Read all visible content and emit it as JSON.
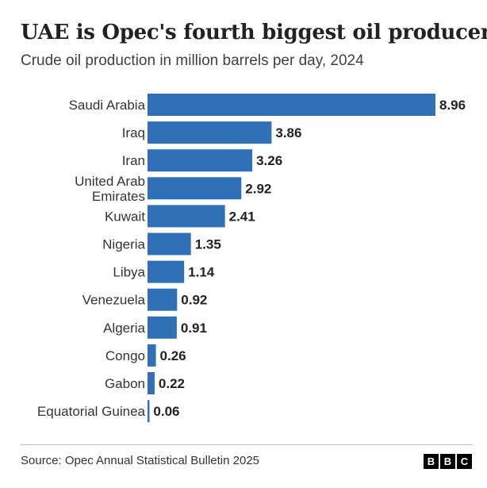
{
  "title": "UAE is Opec's fourth biggest oil producer",
  "subtitle": "Crude oil production in million barrels per day, 2024",
  "source": "Source: Opec Annual Statistical Bulletin 2025",
  "logo": {
    "letters": [
      "B",
      "B",
      "C"
    ]
  },
  "colors": {
    "bar": "#2f70b7"
  },
  "chart_data": {
    "type": "bar",
    "orientation": "horizontal",
    "title": "UAE is Opec's fourth biggest oil producer",
    "subtitle": "Crude oil production in million barrels per day, 2024",
    "xlabel": "",
    "ylabel": "",
    "unit": "million barrels per day",
    "xlim": [
      0,
      8.96
    ],
    "grid": false,
    "categories": [
      [
        "Saudi Arabia"
      ],
      [
        "Iraq"
      ],
      [
        "Iran"
      ],
      [
        "United Arab",
        "Emirates"
      ],
      [
        "Kuwait"
      ],
      [
        "Nigeria"
      ],
      [
        "Libya"
      ],
      [
        "Venezuela"
      ],
      [
        "Algeria"
      ],
      [
        "Congo"
      ],
      [
        "Gabon"
      ],
      [
        "Equatorial Guinea"
      ]
    ],
    "values": [
      8.96,
      3.86,
      3.26,
      2.92,
      2.41,
      1.35,
      1.14,
      0.92,
      0.91,
      0.26,
      0.22,
      0.06
    ],
    "value_labels": [
      "8.96",
      "3.86",
      "3.26",
      "2.92",
      "2.41",
      "1.35",
      "1.14",
      "0.92",
      "0.91",
      "0.26",
      "0.22",
      "0.06"
    ]
  }
}
